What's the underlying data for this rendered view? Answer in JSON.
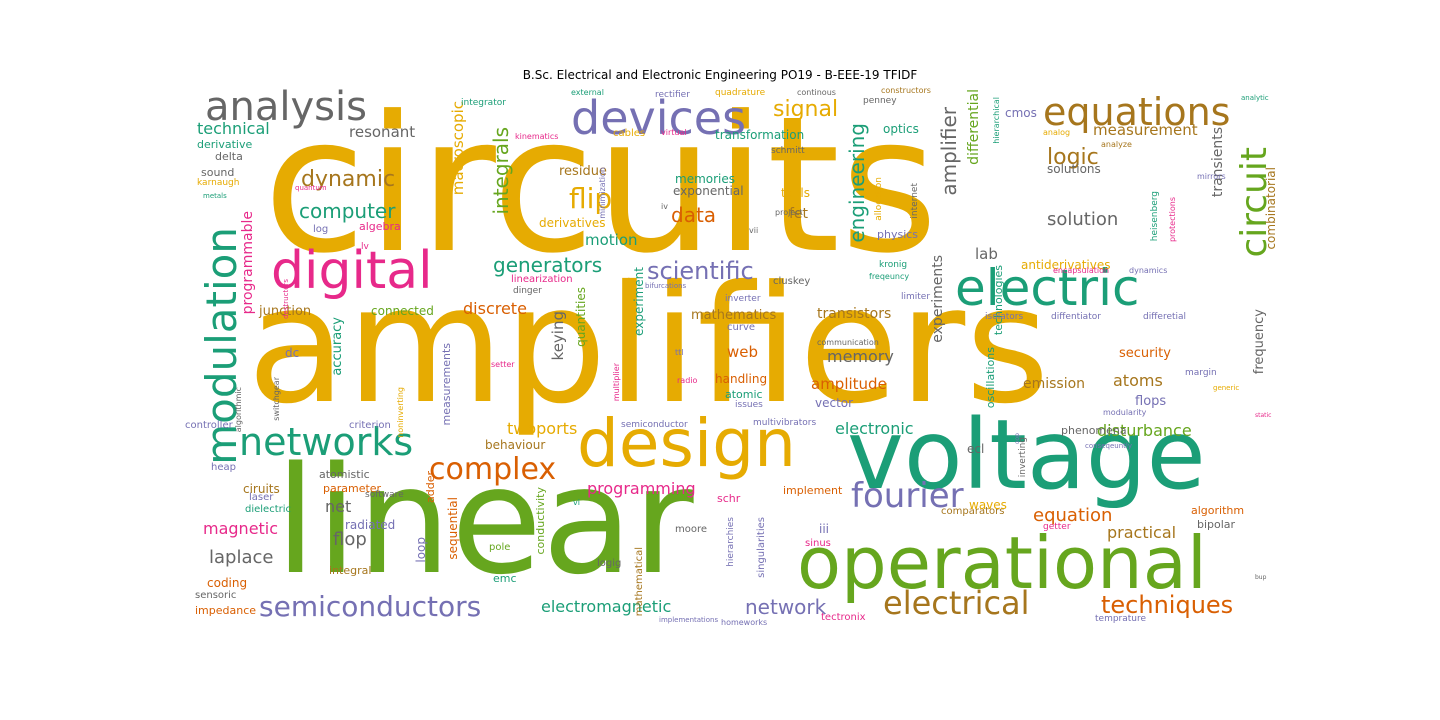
{
  "title": "B.Sc. Electrical and Electronic Engineering  PO19 - B-EEE-19 TFIDF",
  "palette": {
    "teal": "#1b9e77",
    "orange": "#d95f02",
    "purple": "#7570b3",
    "magenta": "#e7298a",
    "green": "#66a61e",
    "gold": "#e6ab02",
    "brown": "#a6761d",
    "gray": "#666666"
  },
  "words": [
    {
      "text": "circuits",
      "color": "gold"
    },
    {
      "text": "amplifiers",
      "color": "gold"
    },
    {
      "text": "linear",
      "color": "green"
    },
    {
      "text": "voltage",
      "color": "teal"
    },
    {
      "text": "operational",
      "color": "green"
    },
    {
      "text": "design",
      "color": "gold"
    },
    {
      "text": "digital",
      "color": "magenta"
    },
    {
      "text": "electric",
      "color": "teal"
    },
    {
      "text": "modulation",
      "color": "teal"
    },
    {
      "text": "devices",
      "color": "purple"
    },
    {
      "text": "equations",
      "color": "brown"
    },
    {
      "text": "analysis",
      "color": "gray"
    },
    {
      "text": "networks",
      "color": "teal"
    },
    {
      "text": "circuit",
      "color": "green"
    },
    {
      "text": "fourier",
      "color": "purple"
    },
    {
      "text": "complex",
      "color": "orange"
    },
    {
      "text": "electrical",
      "color": "brown"
    },
    {
      "text": "semiconductors",
      "color": "purple"
    },
    {
      "text": "techniques",
      "color": "orange"
    },
    {
      "text": "scientific",
      "color": "purple"
    },
    {
      "text": "signal",
      "color": "gold"
    },
    {
      "text": "integrals",
      "color": "green"
    },
    {
      "text": "engineering",
      "color": "teal"
    },
    {
      "text": "amplifier",
      "color": "gray"
    },
    {
      "text": "flip",
      "color": "gold"
    },
    {
      "text": "dynamic",
      "color": "brown"
    },
    {
      "text": "computer",
      "color": "teal"
    },
    {
      "text": "logic",
      "color": "brown"
    },
    {
      "text": "generators",
      "color": "teal"
    },
    {
      "text": "data",
      "color": "orange"
    },
    {
      "text": "solution",
      "color": "gray"
    },
    {
      "text": "equation",
      "color": "orange"
    },
    {
      "text": "network",
      "color": "purple"
    },
    {
      "text": "electromagnetic",
      "color": "teal"
    },
    {
      "text": "laplace",
      "color": "gray"
    },
    {
      "text": "flop",
      "color": "gray"
    },
    {
      "text": "programming",
      "color": "magenta"
    },
    {
      "text": "magnetic",
      "color": "magenta"
    },
    {
      "text": "twoports",
      "color": "gold"
    },
    {
      "text": "electronic",
      "color": "teal"
    },
    {
      "text": "disturbance",
      "color": "green"
    },
    {
      "text": "practical",
      "color": "brown"
    },
    {
      "text": "measurement",
      "color": "brown"
    },
    {
      "text": "technical",
      "color": "teal"
    },
    {
      "text": "resonant",
      "color": "gray"
    },
    {
      "text": "macroscopic",
      "color": "gold"
    },
    {
      "text": "motion",
      "color": "teal"
    },
    {
      "text": "discrete",
      "color": "orange"
    },
    {
      "text": "keying",
      "color": "gray"
    },
    {
      "text": "memory",
      "color": "gray"
    },
    {
      "text": "web",
      "color": "orange"
    },
    {
      "text": "amplitude",
      "color": "orange"
    },
    {
      "text": "atoms",
      "color": "brown"
    },
    {
      "text": "experiments",
      "color": "gray"
    },
    {
      "text": "differential",
      "color": "green"
    },
    {
      "text": "transients",
      "color": "gray"
    },
    {
      "text": "lab",
      "color": "gray"
    },
    {
      "text": "transistors",
      "color": "brown"
    },
    {
      "text": "mathematics",
      "color": "brown"
    },
    {
      "text": "net",
      "color": "gray"
    },
    {
      "text": "emission",
      "color": "brown"
    },
    {
      "text": "flops",
      "color": "purple"
    },
    {
      "text": "security",
      "color": "orange"
    },
    {
      "text": "frequency",
      "color": "gray"
    },
    {
      "text": "programmable",
      "color": "magenta"
    },
    {
      "text": "junction",
      "color": "brown"
    },
    {
      "text": "connected",
      "color": "green"
    },
    {
      "text": "accuracy",
      "color": "teal"
    },
    {
      "text": "behaviour",
      "color": "brown"
    },
    {
      "text": "residue",
      "color": "brown"
    },
    {
      "text": "memories",
      "color": "teal"
    },
    {
      "text": "exponential",
      "color": "gray"
    },
    {
      "text": "derivatives",
      "color": "gold"
    },
    {
      "text": "fet",
      "color": "brown"
    },
    {
      "text": "tools",
      "color": "gold"
    },
    {
      "text": "optics",
      "color": "teal"
    },
    {
      "text": "transformation",
      "color": "teal"
    },
    {
      "text": "cmos",
      "color": "purple"
    },
    {
      "text": "quantities",
      "color": "green"
    },
    {
      "text": "wheatstone",
      "color": "gold"
    },
    {
      "text": "experiment",
      "color": "teal"
    },
    {
      "text": "vector",
      "color": "purple"
    },
    {
      "text": "handling",
      "color": "orange"
    },
    {
      "text": "atomic",
      "color": "teal"
    },
    {
      "text": "physics",
      "color": "purple"
    },
    {
      "text": "antiderivatives",
      "color": "gold"
    },
    {
      "text": "solutions",
      "color": "gray"
    },
    {
      "text": "combinatorial",
      "color": "brown"
    },
    {
      "text": "phenomena",
      "color": "gray"
    },
    {
      "text": "oscillations",
      "color": "teal"
    },
    {
      "text": "technologies",
      "color": "teal"
    },
    {
      "text": "dc",
      "color": "purple"
    },
    {
      "text": "ciruits",
      "color": "brown"
    },
    {
      "text": "coding",
      "color": "orange"
    },
    {
      "text": "impedance",
      "color": "orange"
    },
    {
      "text": "sensoric",
      "color": "gray"
    },
    {
      "text": "laser",
      "color": "purple"
    },
    {
      "text": "dielectric",
      "color": "teal"
    },
    {
      "text": "heap",
      "color": "purple"
    },
    {
      "text": "controller",
      "color": "purple"
    },
    {
      "text": "criterion",
      "color": "purple"
    },
    {
      "text": "atomistic",
      "color": "gray"
    },
    {
      "text": "parameter",
      "color": "orange"
    },
    {
      "text": "radiated",
      "color": "purple"
    },
    {
      "text": "integral",
      "color": "brown"
    },
    {
      "text": "loop",
      "color": "purple"
    },
    {
      "text": "sequential",
      "color": "orange"
    },
    {
      "text": "adder",
      "color": "orange"
    },
    {
      "text": "software",
      "color": "gray"
    },
    {
      "text": "pole",
      "color": "green"
    },
    {
      "text": "emc",
      "color": "teal"
    },
    {
      "text": "conductivity",
      "color": "green"
    },
    {
      "text": "logig",
      "color": "gray"
    },
    {
      "text": "mathematical",
      "color": "brown"
    },
    {
      "text": "moore",
      "color": "gray"
    },
    {
      "text": "schr",
      "color": "magenta"
    },
    {
      "text": "implement",
      "color": "orange"
    },
    {
      "text": "iii",
      "color": "purple"
    },
    {
      "text": "sinus",
      "color": "magenta"
    },
    {
      "text": "singularities",
      "color": "purple"
    },
    {
      "text": "hierarchies",
      "color": "purple"
    },
    {
      "text": "comparators",
      "color": "brown"
    },
    {
      "text": "waves",
      "color": "gold"
    },
    {
      "text": "getter",
      "color": "magenta"
    },
    {
      "text": "algorithm",
      "color": "orange"
    },
    {
      "text": "bipolar",
      "color": "gray"
    },
    {
      "text": "tectronix",
      "color": "magenta"
    },
    {
      "text": "homeworks",
      "color": "purple"
    },
    {
      "text": "temprature",
      "color": "purple"
    },
    {
      "text": "implementations",
      "color": "purple"
    },
    {
      "text": "ecl",
      "color": "gray"
    },
    {
      "text": "inverting",
      "color": "gray"
    },
    {
      "text": "integrator",
      "color": "teal"
    },
    {
      "text": "rectifier",
      "color": "purple"
    },
    {
      "text": "quadrature",
      "color": "gold"
    },
    {
      "text": "external",
      "color": "teal"
    },
    {
      "text": "constructors",
      "color": "brown"
    },
    {
      "text": "continous",
      "color": "gray"
    },
    {
      "text": "penney",
      "color": "gray"
    },
    {
      "text": "hierarchical",
      "color": "teal"
    },
    {
      "text": "analytic",
      "color": "teal"
    },
    {
      "text": "analog",
      "color": "gold"
    },
    {
      "text": "analyze",
      "color": "brown"
    },
    {
      "text": "kinematics",
      "color": "magenta"
    },
    {
      "text": "cables",
      "color": "gold"
    },
    {
      "text": "virtual",
      "color": "magenta"
    },
    {
      "text": "schmitt",
      "color": "gray"
    },
    {
      "text": "derivative",
      "color": "teal"
    },
    {
      "text": "delta",
      "color": "gray"
    },
    {
      "text": "sound",
      "color": "gray"
    },
    {
      "text": "karnaugh",
      "color": "gold"
    },
    {
      "text": "quantum",
      "color": "magenta"
    },
    {
      "text": "metals",
      "color": "teal"
    },
    {
      "text": "minimization",
      "color": "purple"
    },
    {
      "text": "log",
      "color": "purple"
    },
    {
      "text": "algebra",
      "color": "magenta"
    },
    {
      "text": "lv",
      "color": "magenta"
    },
    {
      "text": "destructors",
      "color": "magenta"
    },
    {
      "text": "algorithmic",
      "color": "gray"
    },
    {
      "text": "switchgear",
      "color": "gray"
    },
    {
      "text": "noninverting",
      "color": "gold"
    },
    {
      "text": "measurements",
      "color": "purple"
    },
    {
      "text": "linearization",
      "color": "magenta"
    },
    {
      "text": "dinger",
      "color": "gray"
    },
    {
      "text": "bifurcations",
      "color": "purple"
    },
    {
      "text": "cluskey",
      "color": "gray"
    },
    {
      "text": "inverter",
      "color": "purple"
    },
    {
      "text": "curve",
      "color": "purple"
    },
    {
      "text": "kronig",
      "color": "teal"
    },
    {
      "text": "freqeuncy",
      "color": "teal"
    },
    {
      "text": "limiter",
      "color": "purple"
    },
    {
      "text": "communication",
      "color": "gray"
    },
    {
      "text": "multiplier",
      "color": "magenta"
    },
    {
      "text": "setter",
      "color": "magenta"
    },
    {
      "text": "ttl",
      "color": "purple"
    },
    {
      "text": "radio",
      "color": "magenta"
    },
    {
      "text": "issues",
      "color": "purple"
    },
    {
      "text": "multivibrators",
      "color": "purple"
    },
    {
      "text": "semiconductor",
      "color": "purple"
    },
    {
      "text": "vi",
      "color": "teal"
    },
    {
      "text": "project",
      "color": "gray"
    },
    {
      "text": "vii",
      "color": "gray"
    },
    {
      "text": "iv",
      "color": "gray"
    },
    {
      "text": "allocation",
      "color": "gold"
    },
    {
      "text": "internet",
      "color": "gray"
    },
    {
      "text": "heisenberg",
      "color": "teal"
    },
    {
      "text": "protections",
      "color": "magenta"
    },
    {
      "text": "mirrors",
      "color": "purple"
    },
    {
      "text": "encapsulation",
      "color": "magenta"
    },
    {
      "text": "dynamics",
      "color": "purple"
    },
    {
      "text": "isolators",
      "color": "purple"
    },
    {
      "text": "diffentiator",
      "color": "purple"
    },
    {
      "text": "differetial",
      "color": "purple"
    },
    {
      "text": "margin",
      "color": "purple"
    },
    {
      "text": "generic",
      "color": "gold"
    },
    {
      "text": "modularity",
      "color": "purple"
    },
    {
      "text": "static",
      "color": "magenta"
    },
    {
      "text": "conseqeuntly",
      "color": "purple"
    },
    {
      "text": "oop",
      "color": "purple"
    },
    {
      "text": "bup",
      "color": "gray"
    }
  ]
}
